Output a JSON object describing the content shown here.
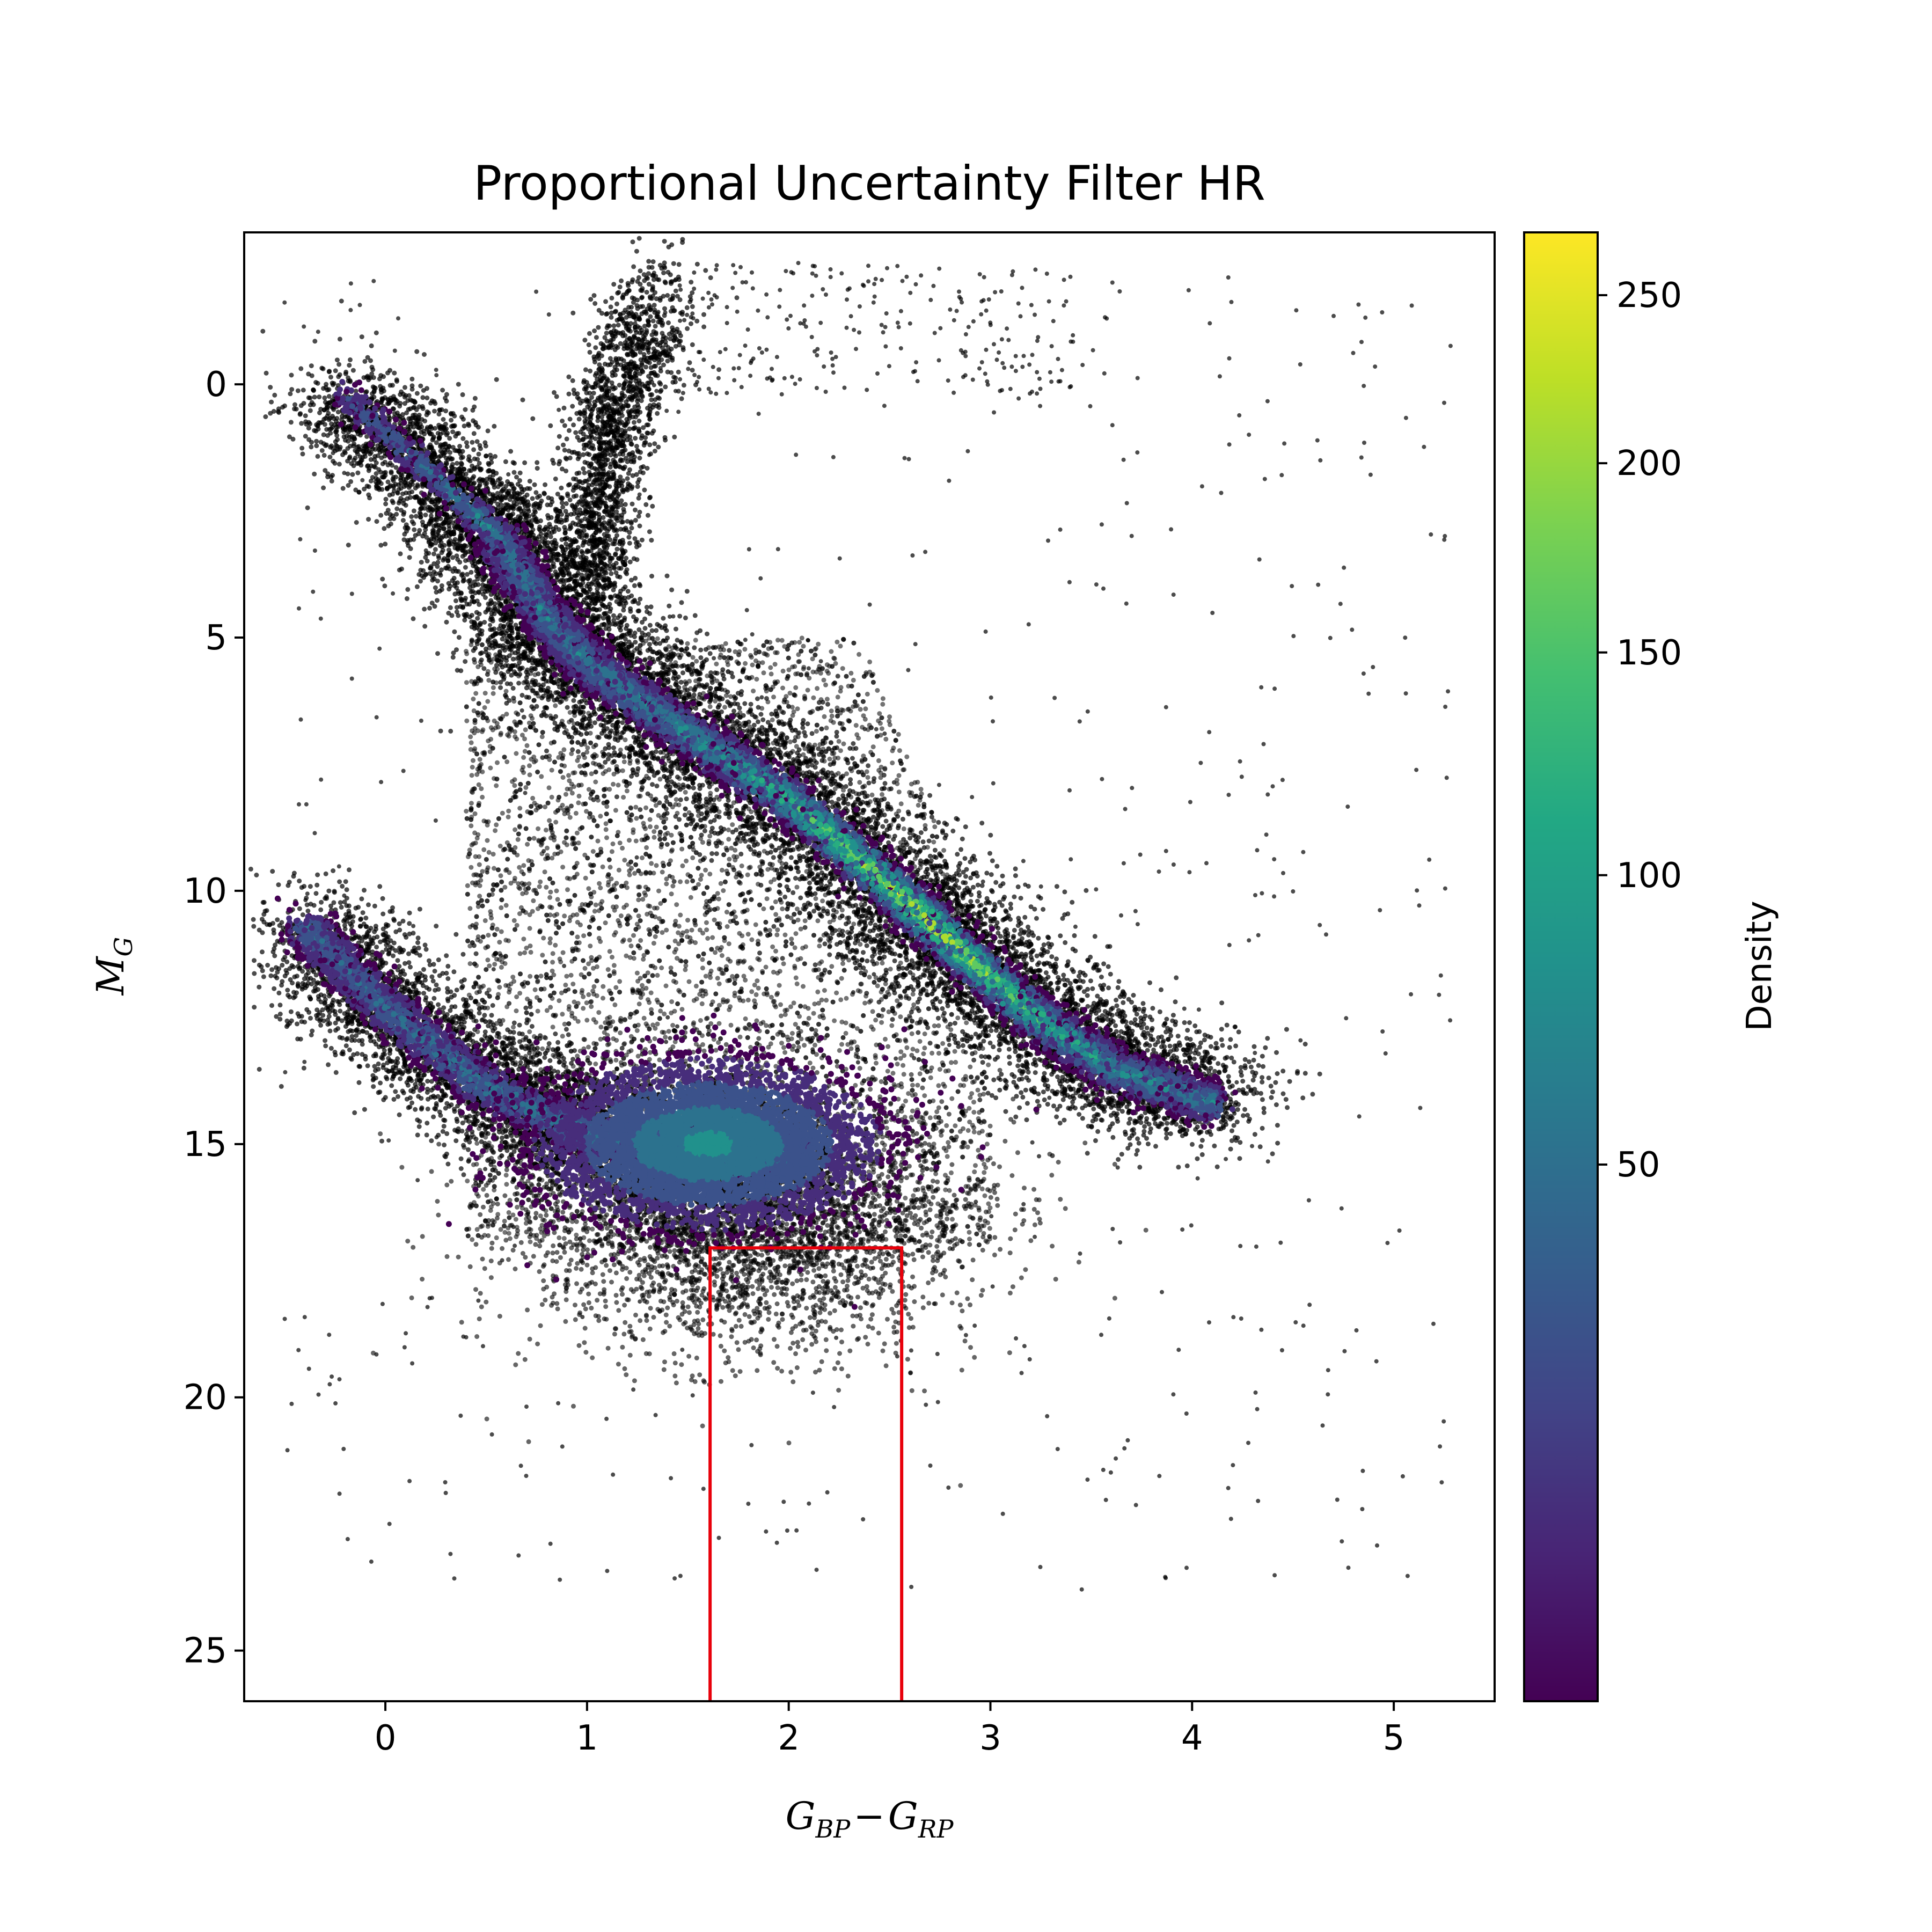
{
  "chart_data": {
    "type": "scatter",
    "title": "Proportional Uncertainty Filter HR",
    "xlabel": {
      "main": "G",
      "sub1": "BP",
      "minus": "−",
      "main2": "G",
      "sub2": "RP"
    },
    "ylabel": {
      "main": "M",
      "sub": "G"
    },
    "xlim": [
      -0.7,
      5.5
    ],
    "ylim": [
      26,
      -3
    ],
    "y_inverted": true,
    "xticks": [
      0,
      1,
      2,
      3,
      4,
      5
    ],
    "xtick_labels": [
      "0",
      "1",
      "2",
      "3",
      "4",
      "5"
    ],
    "yticks": [
      0,
      5,
      10,
      15,
      20,
      25
    ],
    "ytick_labels": [
      "0",
      "5",
      "10",
      "15",
      "20",
      "25"
    ],
    "grid": false,
    "colorbar": {
      "label": "Density",
      "colormap": "viridis",
      "min": 8,
      "max": 270,
      "scale": "nonlinear",
      "ticks": [
        50,
        100,
        150,
        200,
        250
      ],
      "tick_labels": [
        "50",
        "100",
        "150",
        "200",
        "250"
      ]
    },
    "structures": [
      {
        "name": "main sequence ridge",
        "points": [
          [
            0.55,
            3.0
          ],
          [
            0.8,
            4.6
          ],
          [
            1.0,
            5.5
          ],
          [
            1.5,
            6.9
          ],
          [
            2.0,
            8.2
          ],
          [
            2.5,
            9.9
          ],
          [
            2.8,
            11.0
          ],
          [
            3.2,
            12.4
          ],
          [
            3.6,
            13.5
          ],
          [
            4.1,
            14.2
          ]
        ]
      },
      {
        "name": "white dwarf sequence",
        "points": [
          [
            -0.4,
            10.7
          ],
          [
            0.0,
            12.3
          ],
          [
            0.5,
            13.9
          ],
          [
            1.0,
            14.8
          ],
          [
            1.5,
            15.1
          ],
          [
            2.0,
            15.2
          ]
        ]
      },
      {
        "name": "giant branch",
        "points": [
          [
            1.0,
            4.0
          ],
          [
            1.05,
            2.5
          ],
          [
            1.1,
            1.0
          ],
          [
            1.2,
            -0.5
          ],
          [
            1.4,
            -1.5
          ]
        ]
      },
      {
        "name": "upper main sequence",
        "points": [
          [
            -0.2,
            0.2
          ],
          [
            0.1,
            1.3
          ],
          [
            0.4,
            2.4
          ],
          [
            0.55,
            3.0
          ]
        ]
      }
    ],
    "selection_box": {
      "color": "#e8000b",
      "x0": 1.61,
      "x1": 2.56,
      "y_top": 17.05,
      "y_bottom": 26
    }
  }
}
